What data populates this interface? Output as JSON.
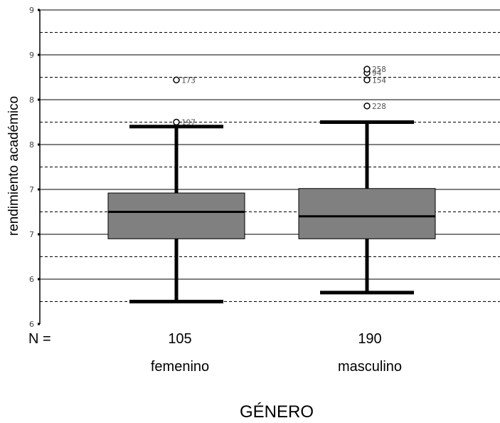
{
  "chart_data": {
    "type": "boxplot",
    "ylabel": "rendimiento académico",
    "xlabel": "GÉNERO",
    "n_label": "N =",
    "y_tick_labels": [
      "6",
      "6",
      "7",
      "7",
      "8",
      "8",
      "9",
      "9"
    ],
    "ylim": [
      5.5,
      9.0
    ],
    "grid": {
      "solid": true,
      "dashed": true
    },
    "categories": [
      "femenino",
      "masculino"
    ],
    "n": [
      "105",
      "190"
    ],
    "boxes": [
      {
        "category": "femenino",
        "whisker_low": 5.75,
        "q1": 6.45,
        "median": 6.75,
        "q3": 6.96,
        "whisker_high": 7.7,
        "outliers": [
          {
            "value": 7.75,
            "label": "197"
          },
          {
            "value": 8.22,
            "label": "173"
          }
        ]
      },
      {
        "category": "masculino",
        "whisker_low": 5.85,
        "q1": 6.45,
        "median": 6.7,
        "q3": 7.01,
        "whisker_high": 7.75,
        "outliers": [
          {
            "value": 7.93,
            "label": "228"
          },
          {
            "value": 8.22,
            "label": "154"
          },
          {
            "value": 8.3,
            "label": "94"
          },
          {
            "value": 8.34,
            "label": "258"
          }
        ]
      }
    ],
    "box_color": "#808080"
  }
}
